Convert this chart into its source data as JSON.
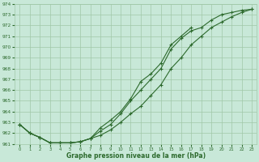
{
  "x": [
    0,
    1,
    2,
    3,
    4,
    5,
    6,
    7,
    8,
    9,
    10,
    11,
    12,
    13,
    14,
    15,
    16,
    17,
    18,
    19,
    20,
    21,
    22,
    23
  ],
  "line1": [
    962.8,
    962.0,
    961.6,
    961.1,
    961.1,
    961.1,
    961.2,
    961.5,
    961.8,
    962.3,
    963.0,
    963.8,
    964.5,
    965.5,
    966.5,
    968.0,
    969.0,
    970.2,
    971.0,
    971.8,
    972.3,
    972.8,
    973.2,
    973.5
  ],
  "line2": [
    962.8,
    962.0,
    961.6,
    961.1,
    961.1,
    961.1,
    961.2,
    961.5,
    962.2,
    962.8,
    963.8,
    965.0,
    966.0,
    967.0,
    968.0,
    969.8,
    970.8,
    971.5,
    971.8,
    972.5,
    973.0,
    973.2,
    973.4,
    973.5
  ],
  "line3": [
    962.8,
    962.0,
    961.6,
    961.1,
    961.1,
    961.1,
    961.2,
    961.5,
    962.5,
    963.2,
    964.0,
    965.2,
    966.8,
    967.5,
    968.5,
    970.2,
    971.0,
    971.8,
    null,
    null,
    null,
    null,
    null,
    null
  ],
  "ylim": [
    961,
    974
  ],
  "xlim": [
    -0.5,
    23.5
  ],
  "yticks": [
    961,
    962,
    963,
    964,
    965,
    966,
    967,
    968,
    969,
    970,
    971,
    972,
    973,
    974
  ],
  "xticks": [
    0,
    1,
    2,
    3,
    4,
    5,
    6,
    7,
    8,
    9,
    10,
    11,
    12,
    13,
    14,
    15,
    16,
    17,
    18,
    19,
    20,
    21,
    22,
    23
  ],
  "xlabel": "Graphe pression niveau de la mer (hPa)",
  "line_color": "#2d6a2d",
  "bg_color": "#c8e8d8",
  "grid_color": "#a0c8a8",
  "marker": "+",
  "markersize": 3.5,
  "markeredgewidth": 0.8,
  "linewidth": 0.8,
  "tick_fontsize": 4.2,
  "xlabel_fontsize": 5.5
}
